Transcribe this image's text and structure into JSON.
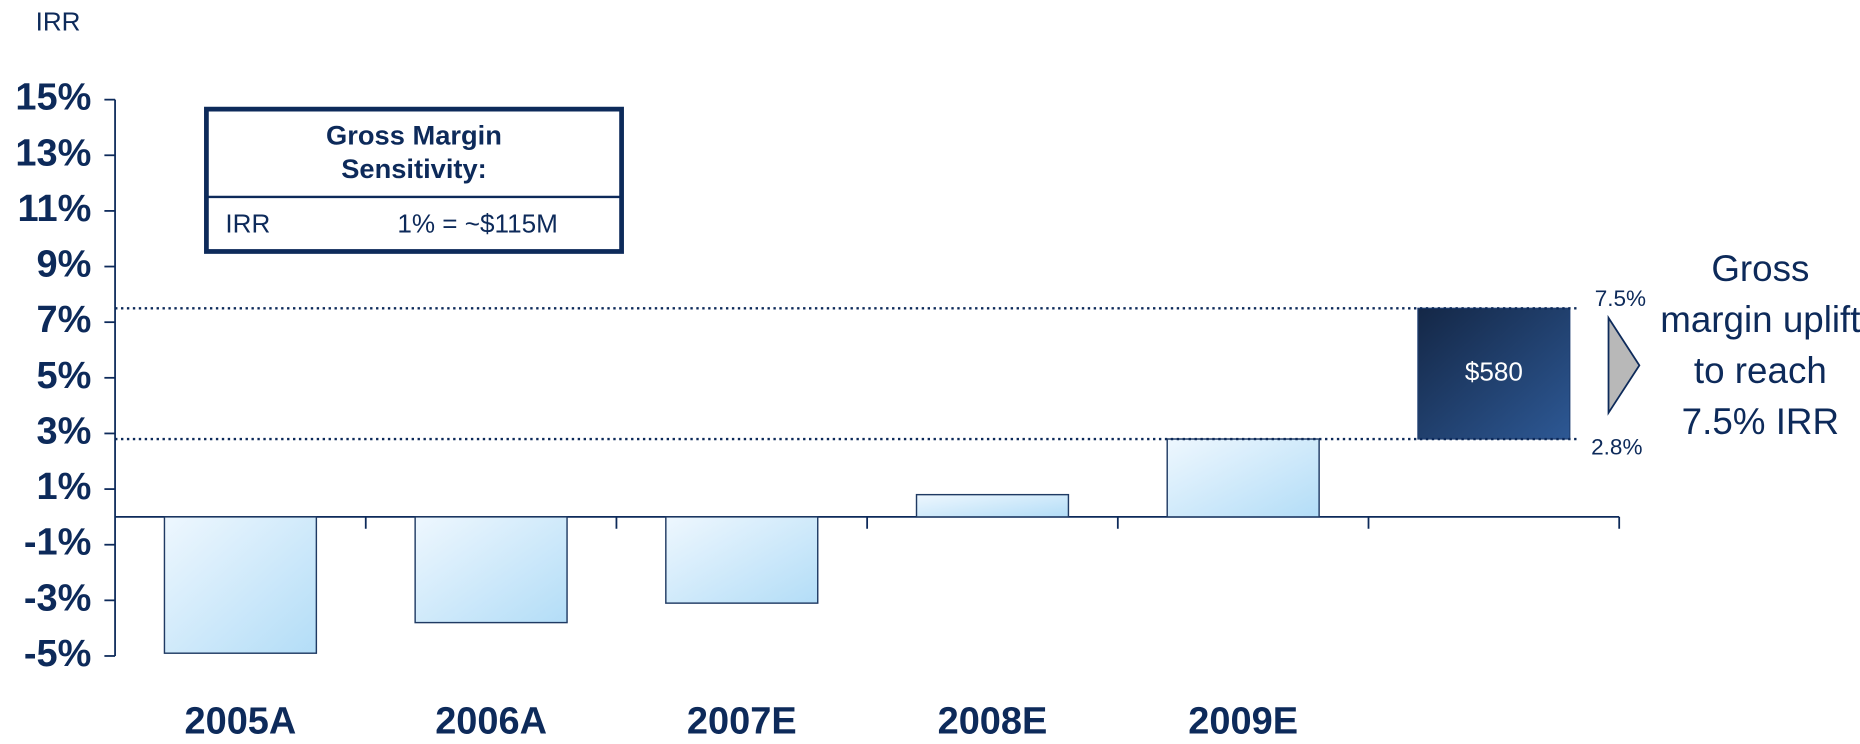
{
  "chart_data": {
    "type": "bar",
    "y_axis_label": "IRR",
    "categories": [
      "2005A",
      "2006A",
      "2007E",
      "2008E",
      "2009E",
      null
    ],
    "values": [
      -4.9,
      -3.8,
      -3.1,
      0.8,
      2.8,
      null
    ],
    "ylim": [
      -5,
      15
    ],
    "yticks": [
      {
        "value": -5,
        "label": "-5%"
      },
      {
        "value": -3,
        "label": "-3%"
      },
      {
        "value": -1,
        "label": "-1%"
      },
      {
        "value": 1,
        "label": "1%"
      },
      {
        "value": 3,
        "label": "3%"
      },
      {
        "value": 5,
        "label": "5%"
      },
      {
        "value": 7,
        "label": "7%"
      },
      {
        "value": 9,
        "label": "9%"
      },
      {
        "value": 11,
        "label": "11%"
      },
      {
        "value": 13,
        "label": "13%"
      },
      {
        "value": 15,
        "label": "15%"
      }
    ],
    "color": "#c4e5fa",
    "uplift": {
      "values": [
        2.8,
        7.5
      ],
      "value_labels": [
        "2.8%",
        "7.5%"
      ],
      "label": "$580",
      "color": "#1f3f72",
      "annotation": "Gross margin uplift to reach 7.5% IRR"
    },
    "sensitivity": {
      "title": "Gross Margin Sensitivity:",
      "row": [
        "IRR",
        "1% = ~$115M"
      ]
    }
  }
}
